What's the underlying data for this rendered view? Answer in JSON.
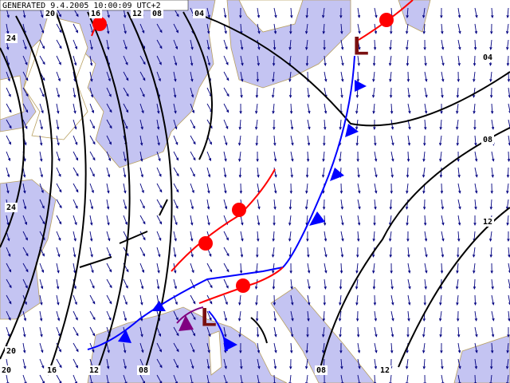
{
  "header": {
    "text": "GENERATED 9.4.2005 10:00:09 UTC+2"
  },
  "isoline_labels": [
    "20",
    "16",
    "12",
    "08",
    "04",
    "24",
    "04",
    "08",
    "24",
    "12",
    "20",
    "20",
    "16",
    "12",
    "08",
    "08",
    "12"
  ],
  "pressure_centers": [
    "L",
    "L"
  ]
}
